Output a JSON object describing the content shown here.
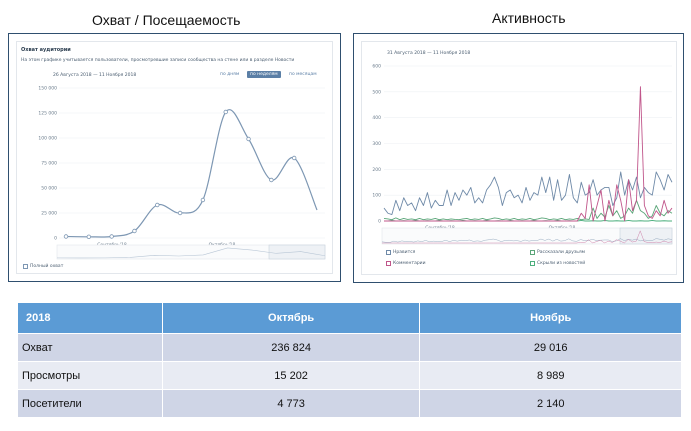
{
  "headings": {
    "left": "Охват / Посещаемость",
    "right": "Активность"
  },
  "reach_panel": {
    "title": "Охват аудитории",
    "description": "На этом графике учитывается пользователи, просмотревшие записи сообщества на стене или в разделе Новости",
    "date_range": "26 Августа 2018 — 11 Ноября 2018",
    "buttons": [
      {
        "label": "по дням",
        "active": false
      },
      {
        "label": "по неделям",
        "active": true
      },
      {
        "label": "по месяцам",
        "active": false
      }
    ],
    "legend": "Полный охват",
    "colors": {
      "line": "#7d97b3",
      "point_fill": "#ffffff"
    }
  },
  "activity_panel": {
    "date_range": "31 Августа 2018 — 11 Ноября 2018",
    "legend": [
      {
        "label": "Нравится",
        "color": "#6f8aa8"
      },
      {
        "label": "Рассказали друзьям",
        "color": "#5aa578"
      },
      {
        "label": "Комментарии",
        "color": "#c0558a"
      },
      {
        "label": "Скрыли из новостей",
        "color": "#4caf7d"
      }
    ]
  },
  "chart_data": [
    {
      "type": "line",
      "ylim": [
        0,
        150000
      ],
      "yticks": [
        "0",
        "25 000",
        "50 000",
        "75 000",
        "100 000",
        "125 000",
        "150 000"
      ],
      "xticks": [
        "Сентябрь'18",
        "Октябрь'18"
      ],
      "series": [
        {
          "values": [
            1500,
            1200,
            1500,
            7000,
            33000,
            25000,
            38000,
            126000,
            99000,
            58000,
            80000,
            28000
          ]
        }
      ]
    },
    {
      "type": "line",
      "ylim": [
        0,
        600
      ],
      "yticks": [
        "0",
        "100",
        "200",
        "300",
        "400",
        "500",
        "600"
      ],
      "xticks": [
        "Сентябрь'18",
        "Октябрь'18"
      ],
      "series": [
        {
          "name": "Нравится",
          "values": [
            50,
            30,
            25,
            80,
            40,
            90,
            60,
            70,
            40,
            90,
            60,
            110,
            50,
            80,
            60,
            60,
            120,
            60,
            110,
            80,
            120,
            100,
            130,
            70,
            90,
            70,
            120,
            140,
            170,
            130,
            60,
            110,
            120,
            90,
            100,
            70,
            130,
            80,
            110,
            100,
            170,
            110,
            170,
            80,
            160,
            80,
            100,
            180,
            90,
            70,
            150,
            100,
            110,
            160,
            100,
            120,
            130,
            130,
            60,
            90,
            190,
            100,
            160,
            120,
            170,
            90,
            130,
            110,
            100,
            190,
            160,
            120,
            180,
            150
          ]
        },
        {
          "name": "Комментарии",
          "values": [
            0,
            0,
            0,
            0,
            0,
            0,
            0,
            0,
            0,
            0,
            0,
            0,
            0,
            0,
            0,
            0,
            0,
            0,
            0,
            0,
            0,
            0,
            0,
            0,
            0,
            0,
            0,
            0,
            0,
            0,
            0,
            0,
            0,
            0,
            0,
            0,
            0,
            0,
            0,
            0,
            0,
            0,
            0,
            0,
            0,
            0,
            0,
            0,
            0,
            0,
            30,
            10,
            140,
            0,
            60,
            120,
            0,
            80,
            20,
            140,
            80,
            0,
            160,
            40,
            80,
            520,
            60,
            20,
            10,
            40,
            20,
            80,
            30,
            50
          ]
        },
        {
          "name": "Рассказали друзьям",
          "values": [
            10,
            8,
            5,
            12,
            5,
            10,
            6,
            8,
            5,
            10,
            5,
            8,
            6,
            10,
            5,
            8,
            5,
            8,
            6,
            5,
            8,
            10,
            5,
            8,
            6,
            10,
            5,
            8,
            12,
            10,
            5,
            8,
            6,
            10,
            5,
            8,
            6,
            10,
            5,
            8,
            12,
            10,
            5,
            8,
            6,
            10,
            5,
            8,
            6,
            10,
            5,
            8,
            6,
            50,
            10,
            30,
            15,
            60,
            20,
            40,
            10,
            20,
            50,
            30,
            80,
            40,
            30,
            10,
            20,
            60,
            30,
            20,
            40,
            30
          ]
        },
        {
          "name": "Скрыли из новостей",
          "values": [
            0,
            0,
            2,
            0,
            0,
            1,
            0,
            0,
            2,
            0,
            0,
            1,
            0,
            0,
            2,
            0,
            0,
            1,
            0,
            0,
            2,
            0,
            0,
            1,
            0,
            0,
            2,
            0,
            0,
            1,
            0,
            0,
            2,
            0,
            0,
            1,
            0,
            0,
            2,
            0,
            0,
            1,
            0,
            0,
            2,
            0,
            0,
            1,
            0,
            0,
            2,
            0,
            0,
            1,
            0,
            0,
            2,
            0,
            0,
            1,
            0,
            0,
            2,
            0,
            0,
            1,
            0,
            0,
            2,
            0,
            0,
            1,
            0,
            0
          ]
        }
      ]
    }
  ],
  "table": {
    "header": [
      "2018",
      "Октябрь",
      "Ноябрь"
    ],
    "rows": [
      [
        "Охват",
        "236 824",
        "29 016"
      ],
      [
        "Просмотры",
        "15 202",
        "8 989"
      ],
      [
        "Посетители",
        "4 773",
        "2 140"
      ]
    ]
  }
}
